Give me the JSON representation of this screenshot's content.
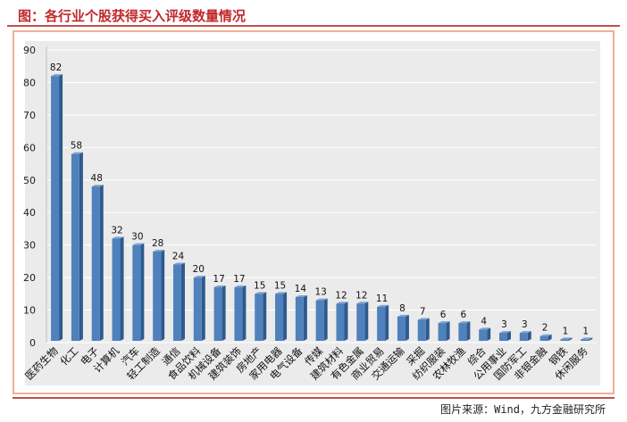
{
  "header": {
    "title": "图：各行业个股获得买入评级数量情况"
  },
  "footer": {
    "source": "图片来源：Wind，九方金融研究所"
  },
  "colors": {
    "bar_front": "#4f81bd",
    "bar_side": "#2e5a8e",
    "bar_top": "#7aa1d2",
    "title": "#c0282c",
    "rule": "#c0504d"
  },
  "chart_data": {
    "type": "bar",
    "categories": [
      "医药生物",
      "化工",
      "电子",
      "计算机",
      "汽车",
      "轻工制造",
      "通信",
      "食品饮料",
      "机械设备",
      "建筑装饰",
      "房地产",
      "家用电器",
      "电气设备",
      "传媒",
      "建筑材料",
      "有色金属",
      "商业贸易",
      "交通运输",
      "采掘",
      "纺织服装",
      "农林牧渔",
      "综合",
      "公用事业",
      "国防军工",
      "非银金融",
      "钢铁",
      "休闲服务"
    ],
    "values": [
      82,
      58,
      48,
      32,
      30,
      28,
      24,
      20,
      17,
      17,
      15,
      15,
      14,
      13,
      12,
      12,
      11,
      8,
      7,
      6,
      6,
      4,
      3,
      3,
      2,
      1,
      1
    ],
    "yticks": [
      "0",
      "10",
      "20",
      "30",
      "40",
      "50",
      "60",
      "70",
      "80",
      "90"
    ],
    "ylim": [
      0,
      90
    ],
    "grid": true
  }
}
